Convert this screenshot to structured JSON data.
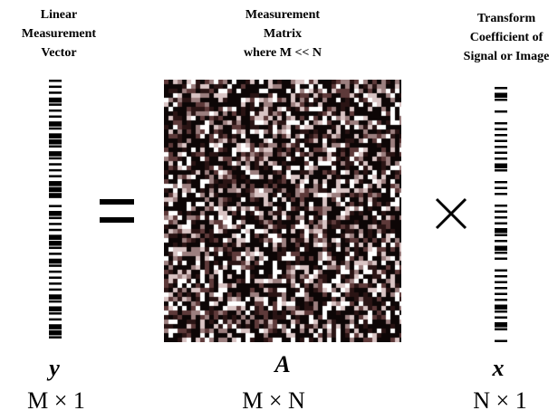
{
  "headers": {
    "y": [
      "Linear",
      "Measurement",
      "Vector"
    ],
    "A": [
      "Measurement",
      "Matrix",
      "where M << N"
    ],
    "x": [
      "Transform",
      "Coefficient of",
      "Signal or Image"
    ]
  },
  "symbols": {
    "y": "y",
    "A": "A",
    "x": "x"
  },
  "dimensions": {
    "y": "M × 1",
    "A": "M × N",
    "x": "N × 1"
  },
  "operators": {
    "equals": "equals-sign",
    "times": "multiplication-sign"
  },
  "colors": {
    "background": "#ffffff",
    "ink": "#000000",
    "matrix_palette": [
      "#0d0606",
      "#2a1414",
      "#5e3a3a",
      "#9c7f7f",
      "#d9c4c4",
      "#ffffff"
    ]
  }
}
